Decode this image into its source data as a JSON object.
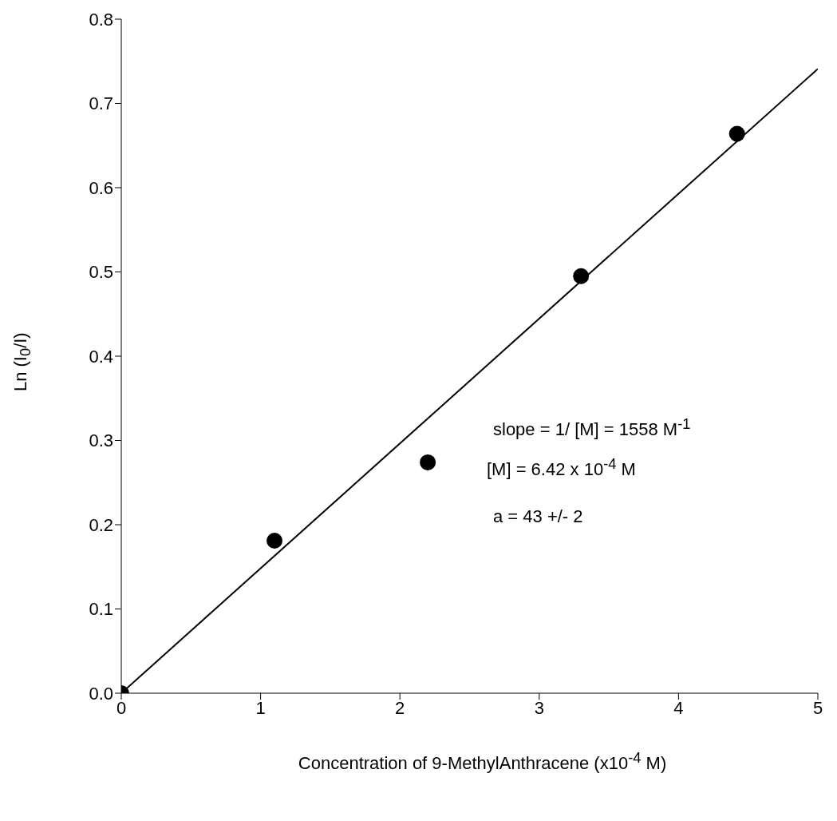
{
  "chart_data": {
    "type": "scatter",
    "xlabel": "Concentration of 9-MethylAnthracene (x10$^{-4}$ M)",
    "ylabel": "Ln (I$_{0}$/I)",
    "xlim": [
      0,
      5
    ],
    "xticks": [
      0,
      1,
      2,
      3,
      4,
      5
    ],
    "ylim": [
      0,
      0.8
    ],
    "yticks": [
      {
        "value": 0,
        "label": "0.0"
      },
      0.1,
      0.2,
      0.3,
      0.4,
      0.5,
      0.6,
      0.7,
      0.8
    ],
    "grid": false,
    "legend": false,
    "series": [
      {
        "color": "#000000",
        "marker": "circle",
        "x": [
          0,
          1.1,
          2.2,
          3.3,
          4.42
        ],
        "values": [
          0,
          0.181,
          0.274,
          0.495,
          0.664
        ]
      },
      {
        "type": "line",
        "color": "#000000",
        "marker": "none",
        "line_style": "solid",
        "x": [
          0,
          5
        ],
        "values": [
          0,
          0.741
        ]
      }
    ],
    "annotations": [
      "slope = 1/ [M] = 1558 M$^{-1}$",
      "[M] = 6.42 x 10$^{-4}$ M",
      "a = 43 +/- 2"
    ]
  }
}
